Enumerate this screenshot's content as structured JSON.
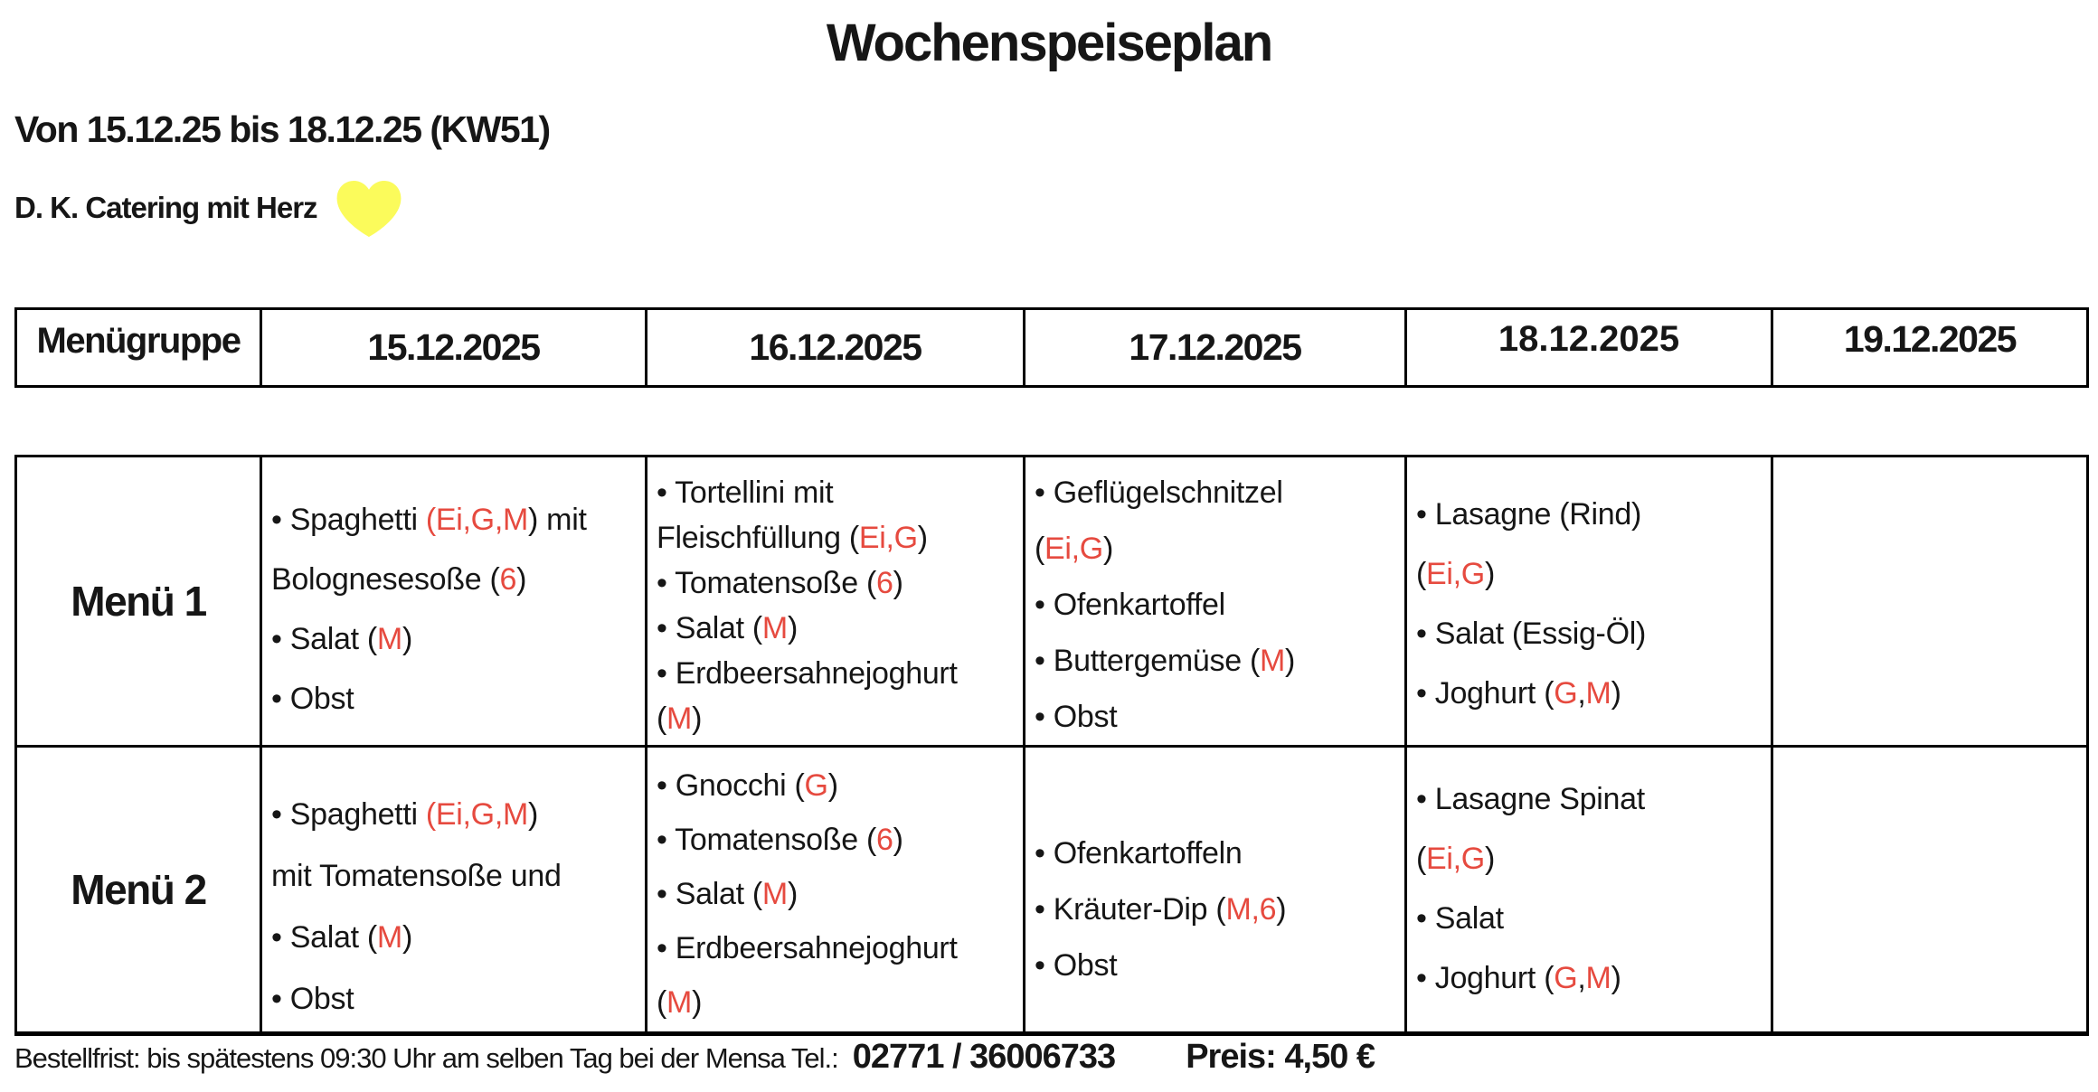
{
  "page_title": "Wochenspeiseplan",
  "subtitle": "Von 15.12.25 bis 18.12.25 (KW51)",
  "vendor_line": {
    "text": "D. K. Catering mit Herz",
    "heart_icon_color": "#fbfb5b"
  },
  "colors": {
    "allergen_red": "#e64a3f",
    "ink": "#161616"
  },
  "week_header": {
    "group_label": "Menügruppe",
    "dates": [
      "15.12.2025",
      "16.12.2025",
      "17.12.2025",
      "18.12.2025",
      "19.12.2025"
    ]
  },
  "menu_rows": [
    {
      "label": "Menü 1",
      "cells": [
        {
          "lines": [
            [
              {
                "t": "• Spaghetti "
              },
              {
                "t": "(Ei,G,M",
                "red": true
              },
              {
                "t": ") mit"
              }
            ],
            [
              {
                "t": "Bolognesesoße ("
              },
              {
                "t": "6",
                "red": true
              },
              {
                "t": ")"
              }
            ],
            [
              {
                "t": "• Salat ("
              },
              {
                "t": "M",
                "red": true
              },
              {
                "t": ")"
              }
            ],
            [
              {
                "t": "• Obst"
              }
            ]
          ]
        },
        {
          "lines": [
            [
              {
                "t": "•  Tortellini mit"
              }
            ],
            [
              {
                "t": "Fleischfüllung  ("
              },
              {
                "t": "Ei,G",
                "red": true
              },
              {
                "t": ")"
              }
            ],
            [
              {
                "t": "• Tomatensoße ("
              },
              {
                "t": "6",
                "red": true
              },
              {
                "t": ")"
              }
            ],
            [
              {
                "t": "• Salat ("
              },
              {
                "t": "M",
                "red": true
              },
              {
                "t": ")"
              }
            ],
            [
              {
                "t": "• Erdbeersahnejoghurt"
              }
            ],
            [
              {
                "t": "("
              },
              {
                "t": "M",
                "red": true
              },
              {
                "t": ")"
              }
            ]
          ]
        },
        {
          "lines": [
            [
              {
                "t": "• Geflügelschnitzel"
              }
            ],
            [
              {
                "t": "("
              },
              {
                "t": "Ei,G",
                "red": true
              },
              {
                "t": ")"
              }
            ],
            [
              {
                "t": "• Ofenkartoffel"
              }
            ],
            [
              {
                "t": "• Buttergemüse ("
              },
              {
                "t": "M",
                "red": true
              },
              {
                "t": ")"
              }
            ],
            [
              {
                "t": "• Obst"
              }
            ]
          ]
        },
        {
          "lines": [
            [
              {
                "t": "•  Lasagne (Rind)"
              }
            ],
            [
              {
                "t": "("
              },
              {
                "t": "Ei,G",
                "red": true
              },
              {
                "t": ")"
              }
            ],
            [
              {
                "t": "• Salat (Essig-Öl)"
              }
            ],
            [
              {
                "t": "• Joghurt ("
              },
              {
                "t": "G",
                "red": true
              },
              {
                "t": ","
              },
              {
                "t": "M",
                "red": true
              },
              {
                "t": ")"
              }
            ]
          ]
        },
        {
          "lines": []
        }
      ]
    },
    {
      "label": "Menü 2",
      "cells": [
        {
          "lines": [
            [
              {
                "t": "• Spaghetti "
              },
              {
                "t": "(Ei,G,M",
                "red": true
              },
              {
                "t": ")"
              }
            ],
            [
              {
                "t": "mit Tomatensoße und"
              }
            ],
            [
              {
                "t": "• Salat ("
              },
              {
                "t": "M",
                "red": true
              },
              {
                "t": ")"
              }
            ],
            [
              {
                "t": "• Obst"
              }
            ]
          ]
        },
        {
          "lines": [
            [
              {
                "t": "•  Gnocchi ("
              },
              {
                "t": "G",
                "red": true
              },
              {
                "t": ")"
              }
            ],
            [
              {
                "t": "• Tomatensoße ("
              },
              {
                "t": "6",
                "red": true
              },
              {
                "t": ")"
              }
            ],
            [
              {
                "t": "• Salat ("
              },
              {
                "t": "M",
                "red": true
              },
              {
                "t": ")"
              }
            ],
            [
              {
                "t": "• Erdbeersahnejoghurt"
              }
            ],
            [
              {
                "t": "("
              },
              {
                "t": "M",
                "red": true
              },
              {
                "t": ")"
              }
            ]
          ]
        },
        {
          "lines": [
            [
              {
                "t": "• Ofenkartoffeln"
              }
            ],
            [
              {
                "t": "• Kräuter-Dip ("
              },
              {
                "t": "M,6",
                "red": true
              },
              {
                "t": ")"
              }
            ],
            [
              {
                "t": "• Obst"
              }
            ]
          ]
        },
        {
          "lines": [
            [
              {
                "t": "• Lasagne Spinat"
              }
            ],
            [
              {
                "t": "("
              },
              {
                "t": "Ei,G",
                "red": true
              },
              {
                "t": ")"
              }
            ],
            [
              {
                "t": "• Salat"
              }
            ],
            [
              {
                "t": "• Joghurt ("
              },
              {
                "t": "G",
                "red": true
              },
              {
                "t": ","
              },
              {
                "t": "M",
                "red": true
              },
              {
                "t": ")"
              }
            ]
          ]
        },
        {
          "lines": []
        }
      ]
    }
  ],
  "footer": {
    "deadline_text": "Bestellfrist: bis spätestens 09:30 Uhr am selben Tag bei der Mensa Tel.:",
    "phone": "02771 / 36006733",
    "price": "Preis: 4,50 €"
  }
}
